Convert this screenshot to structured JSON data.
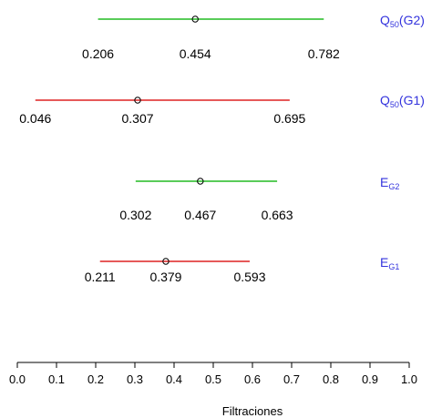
{
  "chart_data": {
    "type": "interval",
    "xlabel": "Filtraciones",
    "xlim": [
      0.0,
      1.0
    ],
    "xticks": [
      "0.0",
      "0.1",
      "0.2",
      "0.3",
      "0.4",
      "0.5",
      "0.6",
      "0.7",
      "0.8",
      "0.9",
      "1.0"
    ],
    "label_color": "#3333dd",
    "series": [
      {
        "name_main": "Q",
        "name_sub": "50",
        "name_suffix": "(G2)",
        "low": 0.206,
        "mid": 0.454,
        "high": 0.782,
        "low_label": "0.206",
        "mid_label": "0.454",
        "high_label": "0.782",
        "color": "#22bb22"
      },
      {
        "name_main": "Q",
        "name_sub": "50",
        "name_suffix": "(G1)",
        "low": 0.046,
        "mid": 0.307,
        "high": 0.695,
        "low_label": "0.046",
        "mid_label": "0.307",
        "high_label": "0.695",
        "color": "#dd2222"
      },
      {
        "name_main": "E",
        "name_sub": "G2",
        "name_suffix": "",
        "low": 0.302,
        "mid": 0.467,
        "high": 0.663,
        "low_label": "0.302",
        "mid_label": "0.467",
        "high_label": "0.663",
        "color": "#22bb22"
      },
      {
        "name_main": "E",
        "name_sub": "G1",
        "name_suffix": "",
        "low": 0.211,
        "mid": 0.379,
        "high": 0.593,
        "low_label": "0.211",
        "mid_label": "0.379",
        "high_label": "0.593",
        "color": "#dd2222"
      }
    ]
  }
}
